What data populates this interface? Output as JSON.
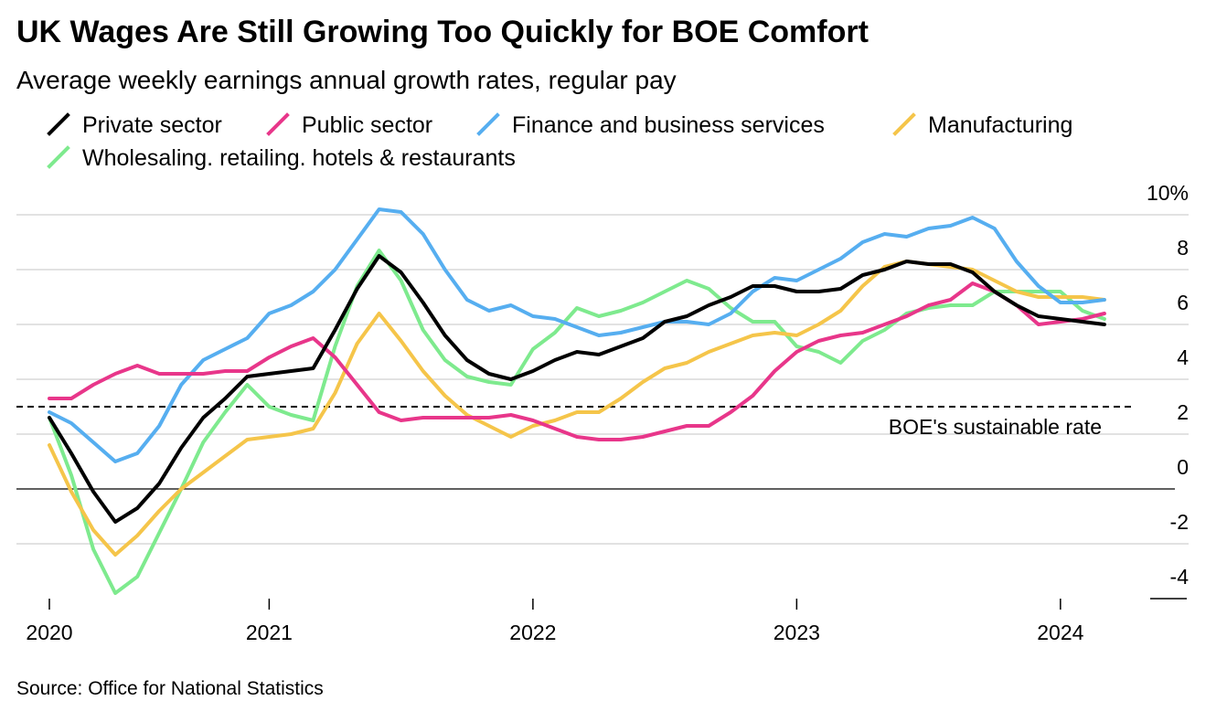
{
  "chart_data": {
    "type": "line",
    "title": "UK Wages Are Still Growing Too Quickly for BOE Comfort",
    "subtitle": "Average weekly earnings annual growth rates, regular pay",
    "source": "Source: Office for National Statistics",
    "categories": [
      "2020",
      null,
      null,
      null,
      null,
      null,
      null,
      null,
      null,
      null,
      "2021",
      null,
      null,
      null,
      null,
      null,
      null,
      null,
      null,
      null,
      null,
      null,
      "2022",
      null,
      null,
      null,
      null,
      null,
      null,
      null,
      null,
      null,
      null,
      null,
      "2023",
      null,
      null,
      null,
      null,
      null,
      null,
      null,
      null,
      null,
      null,
      null,
      "2024",
      null,
      null
    ],
    "series": [
      {
        "name": "Private sector",
        "color": "#000000",
        "values": [
          2.6,
          1.3,
          -0.1,
          -1.2,
          -0.7,
          0.2,
          1.5,
          2.6,
          3.3,
          4.1,
          4.2,
          4.3,
          4.4,
          5.8,
          7.3,
          8.5,
          7.9,
          6.8,
          5.6,
          4.7,
          4.2,
          4.0,
          4.3,
          4.7,
          5.0,
          4.9,
          5.2,
          5.5,
          6.1,
          6.3,
          6.7,
          7.0,
          7.4,
          7.4,
          7.2,
          7.2,
          7.3,
          7.8,
          8.0,
          8.3,
          8.2,
          8.2,
          7.9,
          7.2,
          6.7,
          6.3,
          6.2,
          6.1,
          6.0
        ]
      },
      {
        "name": "Public sector",
        "color": "#e8368a",
        "values": [
          3.3,
          3.3,
          3.8,
          4.2,
          4.5,
          4.2,
          4.2,
          4.2,
          4.3,
          4.3,
          4.8,
          5.2,
          5.5,
          4.8,
          3.8,
          2.8,
          2.5,
          2.6,
          2.6,
          2.6,
          2.6,
          2.7,
          2.5,
          2.2,
          1.9,
          1.8,
          1.8,
          1.9,
          2.1,
          2.3,
          2.3,
          2.8,
          3.4,
          4.3,
          5.0,
          5.4,
          5.6,
          5.7,
          6.0,
          6.3,
          6.7,
          6.9,
          7.5,
          7.2,
          6.7,
          6.0,
          6.1,
          6.2,
          6.4
        ]
      },
      {
        "name": "Finance and business services",
        "color": "#56aef0",
        "values": [
          2.8,
          2.4,
          1.7,
          1.0,
          1.3,
          2.3,
          3.8,
          4.7,
          5.1,
          5.5,
          6.4,
          6.7,
          7.2,
          8.0,
          9.1,
          10.2,
          10.1,
          9.3,
          8.0,
          6.9,
          6.5,
          6.7,
          6.3,
          6.2,
          5.9,
          5.6,
          5.7,
          5.9,
          6.1,
          6.1,
          6.0,
          6.4,
          7.2,
          7.7,
          7.6,
          8.0,
          8.4,
          9.0,
          9.3,
          9.2,
          9.5,
          9.6,
          9.9,
          9.5,
          8.3,
          7.4,
          6.8,
          6.8,
          6.9
        ]
      },
      {
        "name": "Manufacturing",
        "color": "#f5c54a",
        "values": [
          1.6,
          -0.1,
          -1.5,
          -2.4,
          -1.7,
          -0.8,
          0.0,
          0.6,
          1.2,
          1.8,
          1.9,
          2.0,
          2.2,
          3.5,
          5.3,
          6.4,
          5.4,
          4.3,
          3.4,
          2.7,
          2.3,
          1.9,
          2.3,
          2.5,
          2.8,
          2.8,
          3.3,
          3.9,
          4.4,
          4.6,
          5.0,
          5.3,
          5.6,
          5.7,
          5.6,
          6.0,
          6.5,
          7.4,
          8.1,
          8.3,
          8.2,
          8.1,
          8.0,
          7.6,
          7.2,
          7.0,
          7.0,
          7.0,
          6.9
        ]
      },
      {
        "name": "Wholesaling. retailing. hotels & restaurants",
        "color": "#7eea8e",
        "values": [
          2.6,
          0.5,
          -2.2,
          -3.8,
          -3.2,
          -1.6,
          0.0,
          1.7,
          2.8,
          3.8,
          3.0,
          2.7,
          2.5,
          5.2,
          7.4,
          8.7,
          7.6,
          5.8,
          4.7,
          4.1,
          3.9,
          3.8,
          5.1,
          5.7,
          6.6,
          6.3,
          6.5,
          6.8,
          7.2,
          7.6,
          7.3,
          6.6,
          6.1,
          6.1,
          5.2,
          5.0,
          4.6,
          5.4,
          5.8,
          6.4,
          6.6,
          6.7,
          6.7,
          7.2,
          7.2,
          7.2,
          7.2,
          6.5,
          6.2
        ]
      }
    ],
    "ylim": [
      -4,
      10
    ],
    "yticks": [
      -4,
      -2,
      0,
      2,
      4,
      6,
      8,
      {
        "value": 10,
        "label": "10%"
      }
    ],
    "grid": true,
    "threshold": {
      "value": 3,
      "label": "BOE's sustainable rate"
    }
  }
}
